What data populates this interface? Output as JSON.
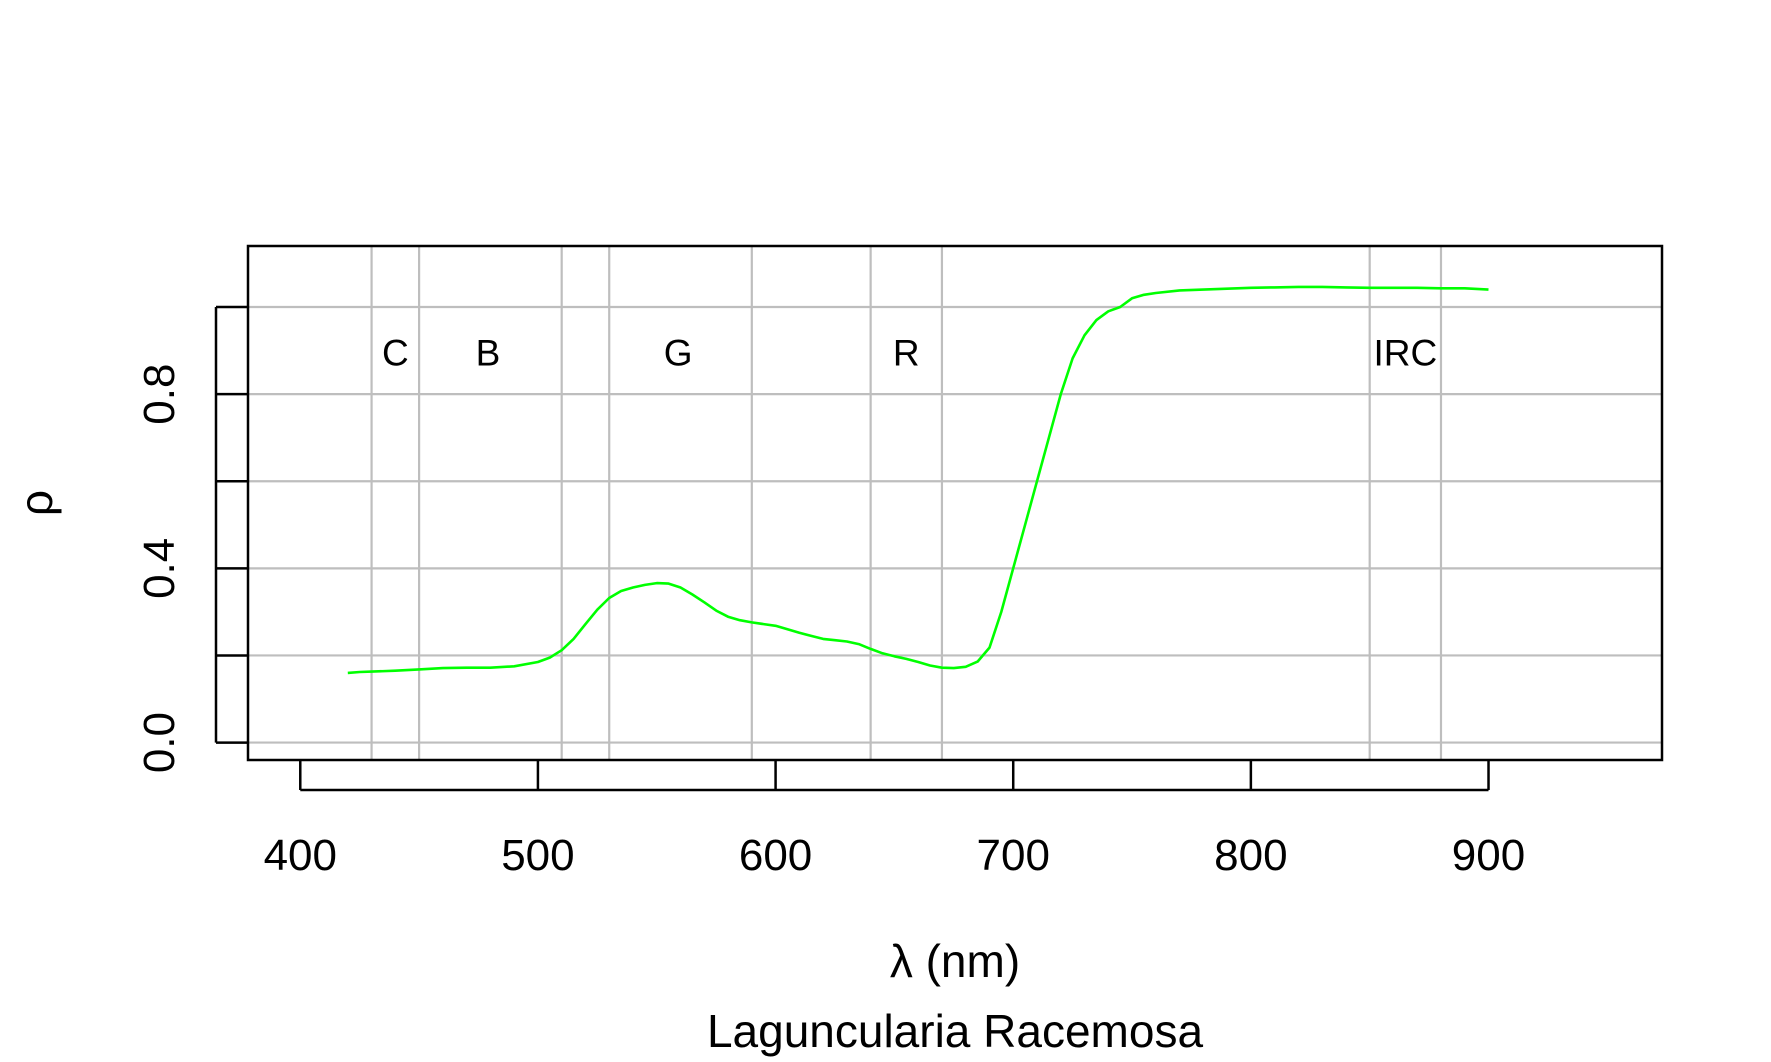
{
  "chart_data": {
    "type": "line",
    "title": "",
    "xlabel": "λ (nm)",
    "ylabel": "ρ",
    "caption": "Laguncularia Racemosa",
    "xlim": [
      378,
      973
    ],
    "ylim": [
      -0.04,
      1.14
    ],
    "x_ticks": [
      400,
      500,
      600,
      700,
      800,
      900
    ],
    "x_tick_labels": [
      "400",
      "500",
      "600",
      "700",
      "800",
      "900"
    ],
    "y_ticks": [
      0.0,
      0.2,
      0.4,
      0.6,
      0.8,
      1.0
    ],
    "y_tick_labels": [
      "0.0",
      "",
      "0.4",
      "",
      "0.8",
      ""
    ],
    "grid": true,
    "grid_x": [
      430,
      450,
      510,
      530,
      590,
      640,
      670,
      850,
      880
    ],
    "grid_y": [
      0.0,
      0.2,
      0.4,
      0.6,
      0.8,
      1.0
    ],
    "band_labels": [
      {
        "text": "C",
        "x": 440,
        "y": 0.895
      },
      {
        "text": "B",
        "x": 479,
        "y": 0.895
      },
      {
        "text": "G",
        "x": 559,
        "y": 0.895
      },
      {
        "text": "R",
        "x": 655,
        "y": 0.895
      },
      {
        "text": "IRC",
        "x": 865,
        "y": 0.895
      }
    ],
    "line_color": "#00ff00",
    "grid_color": "#bebebe",
    "series": [
      {
        "x": [
          420,
          425,
          430,
          440,
          450,
          460,
          470,
          480,
          490,
          500,
          505,
          510,
          515,
          520,
          525,
          530,
          535,
          540,
          545,
          550,
          555,
          560,
          565,
          570,
          575,
          580,
          585,
          590,
          595,
          600,
          605,
          610,
          615,
          620,
          625,
          630,
          635,
          640,
          645,
          650,
          655,
          660,
          665,
          670,
          675,
          680,
          685,
          690,
          695,
          700,
          705,
          710,
          715,
          720,
          725,
          730,
          735,
          740,
          745,
          750,
          755,
          760,
          770,
          780,
          790,
          800,
          810,
          820,
          830,
          840,
          850,
          860,
          870,
          880,
          890,
          900
        ],
        "y": [
          0.16,
          0.162,
          0.163,
          0.165,
          0.168,
          0.171,
          0.172,
          0.172,
          0.175,
          0.185,
          0.195,
          0.212,
          0.238,
          0.272,
          0.305,
          0.332,
          0.348,
          0.356,
          0.362,
          0.366,
          0.365,
          0.356,
          0.34,
          0.322,
          0.303,
          0.289,
          0.281,
          0.276,
          0.272,
          0.268,
          0.26,
          0.252,
          0.245,
          0.238,
          0.235,
          0.232,
          0.226,
          0.215,
          0.205,
          0.198,
          0.192,
          0.185,
          0.177,
          0.172,
          0.171,
          0.174,
          0.186,
          0.218,
          0.3,
          0.4,
          0.5,
          0.6,
          0.7,
          0.8,
          0.882,
          0.935,
          0.97,
          0.99,
          1.0,
          1.02,
          1.028,
          1.032,
          1.038,
          1.04,
          1.042,
          1.044,
          1.045,
          1.046,
          1.046,
          1.045,
          1.044,
          1.044,
          1.044,
          1.043,
          1.043,
          1.04
        ]
      }
    ]
  }
}
